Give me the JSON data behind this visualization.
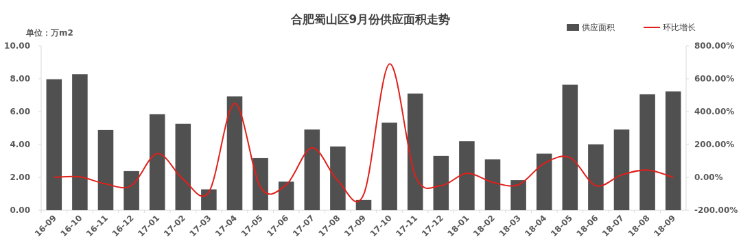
{
  "chart_data": {
    "type": "bar",
    "title": "合肥蜀山区9月份供应面积走势",
    "ylabel": "单位：万m2",
    "categories": [
      "16-09",
      "16-10",
      "16-11",
      "16-12",
      "17-01",
      "17-02",
      "17-03",
      "17-04",
      "17-05",
      "17-06",
      "17-07",
      "17-08",
      "17-09",
      "17-10",
      "17-11",
      "17-12",
      "18-01",
      "18-02",
      "18-03",
      "18-04",
      "18-05",
      "18-06",
      "18-07",
      "18-08",
      "18-09"
    ],
    "series": [
      {
        "name": "供应面积",
        "color": "#505050",
        "values": [
          7.97,
          8.28,
          4.88,
          2.38,
          5.84,
          5.26,
          1.27,
          6.93,
          3.17,
          1.74,
          4.91,
          3.88,
          0.63,
          5.33,
          7.1,
          3.3,
          4.2,
          3.1,
          1.83,
          3.44,
          7.64,
          4.01,
          4.91,
          7.06,
          7.23
        ]
      },
      {
        "name": "环比增长",
        "type": "line",
        "axis": "y2",
        "color": "#e0201b",
        "values": [
          0,
          3,
          -40,
          -50,
          145,
          -10,
          -90,
          450,
          -60,
          -45,
          180,
          -20,
          -105,
          690,
          10,
          -50,
          25,
          -30,
          -45,
          85,
          120,
          -50,
          15,
          45,
          0
        ]
      }
    ],
    "ylim": [
      0,
      10
    ],
    "yticks": [
      {
        "value": 0,
        "label": "0.00"
      },
      {
        "value": 2,
        "label": "2.00"
      },
      {
        "value": 4,
        "label": "4.00"
      },
      {
        "value": 6,
        "label": "6.00"
      },
      {
        "value": 8,
        "label": "8.00"
      },
      {
        "value": 10,
        "label": "10.00"
      }
    ],
    "y2lim": [
      -200,
      800
    ],
    "y2ticks": [
      {
        "value": -200,
        "label": "-200.00%"
      },
      {
        "value": 0,
        "label": "0.00%"
      },
      {
        "value": 200,
        "label": "200.00%"
      },
      {
        "value": 400,
        "label": "400.00%"
      },
      {
        "value": 600,
        "label": "600.00%"
      },
      {
        "value": 800,
        "label": "800.00%"
      }
    ],
    "grid": false,
    "legend": "top right",
    "marker": "none",
    "line_style": "solid"
  }
}
